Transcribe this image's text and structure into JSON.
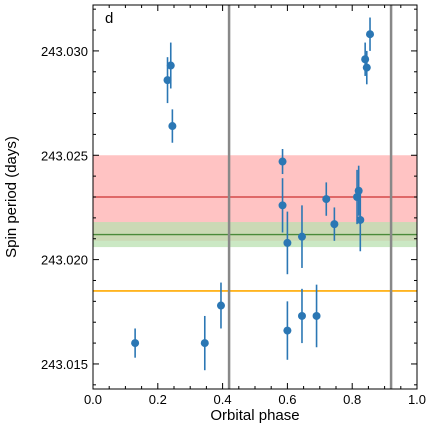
{
  "chart_data": {
    "type": "scatter",
    "panel_label": "d",
    "xlabel": "Orbital phase",
    "ylabel": "Spin period (days)",
    "xlim": [
      0.0,
      1.0
    ],
    "ylim": [
      243.0138,
      243.0322
    ],
    "x_ticks": [
      0.0,
      0.2,
      0.4,
      0.6,
      0.8,
      1.0
    ],
    "x_tick_labels": [
      "0.0",
      "0.2",
      "0.4",
      "0.6",
      "0.8",
      "1.0"
    ],
    "y_ticks": [
      243.015,
      243.02,
      243.025,
      243.03
    ],
    "y_tick_labels": [
      "243.015",
      "243.020",
      "243.025",
      "243.030"
    ],
    "grid": false,
    "colors": {
      "points": "#2b77b4",
      "red_band": "#ffc0c0",
      "red_line": "#cc3333",
      "green_band": "#b9e0b0",
      "green_line": "#4a8a3a",
      "orange_line": "#ffaa00",
      "vertical_lines": "#888888"
    },
    "bands": [
      {
        "color": "red",
        "low": 243.0209,
        "high": 243.025,
        "center": 243.023
      },
      {
        "color": "green",
        "low": 243.0206,
        "high": 243.0218,
        "center": 243.0212
      }
    ],
    "horizontal_lines": [
      {
        "color": "orange",
        "y": 243.0185
      }
    ],
    "vertical_lines": [
      0.42,
      0.92
    ],
    "points": [
      {
        "x": 0.13,
        "y": 243.016,
        "err": 0.0007
      },
      {
        "x": 0.23,
        "y": 243.0286,
        "err": 0.0011
      },
      {
        "x": 0.24,
        "y": 243.0293,
        "err": 0.0011
      },
      {
        "x": 0.245,
        "y": 243.0264,
        "err": 0.0008
      },
      {
        "x": 0.345,
        "y": 243.016,
        "err": 0.0013
      },
      {
        "x": 0.395,
        "y": 243.0178,
        "err": 0.0011
      },
      {
        "x": 0.585,
        "y": 243.0247,
        "err": 0.0006
      },
      {
        "x": 0.585,
        "y": 243.0226,
        "err": 0.0013
      },
      {
        "x": 0.6,
        "y": 243.0208,
        "err": 0.0015
      },
      {
        "x": 0.6,
        "y": 243.0166,
        "err": 0.0014
      },
      {
        "x": 0.645,
        "y": 243.0211,
        "err": 0.0015
      },
      {
        "x": 0.645,
        "y": 243.0173,
        "err": 0.0013
      },
      {
        "x": 0.69,
        "y": 243.0173,
        "err": 0.0015
      },
      {
        "x": 0.72,
        "y": 243.0229,
        "err": 0.0008
      },
      {
        "x": 0.745,
        "y": 243.0217,
        "err": 0.0008
      },
      {
        "x": 0.815,
        "y": 243.023,
        "err": 0.0013
      },
      {
        "x": 0.82,
        "y": 243.0233,
        "err": 0.0012
      },
      {
        "x": 0.825,
        "y": 243.0219,
        "err": 0.0015
      },
      {
        "x": 0.84,
        "y": 243.0296,
        "err": 0.0008
      },
      {
        "x": 0.845,
        "y": 243.0292,
        "err": 0.0008
      },
      {
        "x": 0.855,
        "y": 243.0308,
        "err": 0.0008
      }
    ]
  }
}
